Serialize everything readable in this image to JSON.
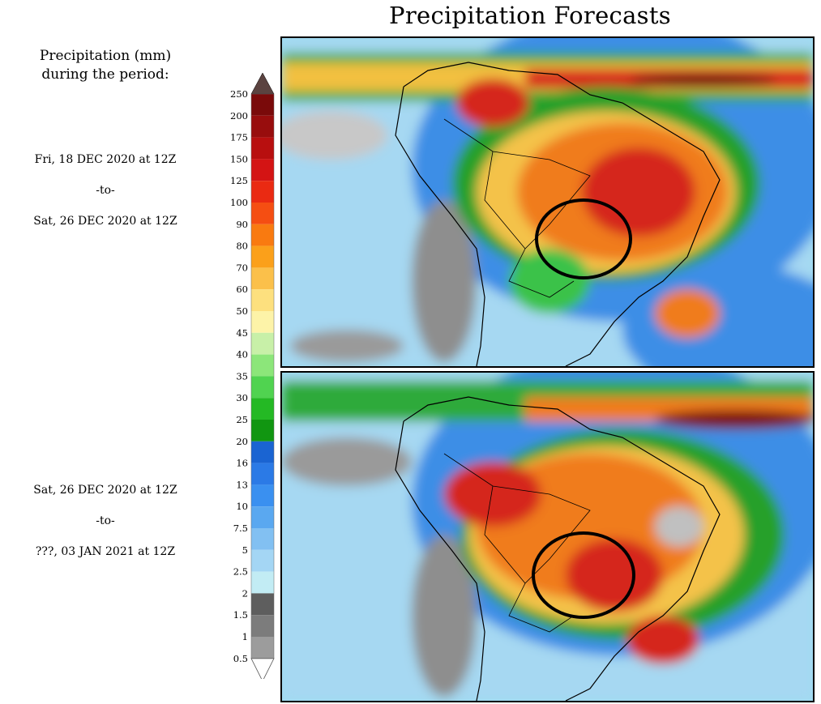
{
  "title": "Precipitation Forecasts",
  "legend": {
    "heading_line1": "Precipitation (mm)",
    "heading_line2": "during the period:",
    "levels": [
      "250",
      "200",
      "175",
      "150",
      "125",
      "100",
      "90",
      "80",
      "70",
      "60",
      "50",
      "45",
      "40",
      "35",
      "30",
      "25",
      "20",
      "16",
      "13",
      "10",
      "7.5",
      "5",
      "2.5",
      "2",
      "1.5",
      "1",
      "0.5"
    ],
    "colors": [
      "#7a0a0a",
      "#980d0d",
      "#b80f0f",
      "#d41414",
      "#ea2a12",
      "#f54e12",
      "#f97a10",
      "#fba01a",
      "#fbc04a",
      "#fde07e",
      "#fdf3a8",
      "#c8f0a8",
      "#8ce67a",
      "#50d350",
      "#24b924",
      "#119611",
      "#1a64d2",
      "#2b7ae6",
      "#3a90f0",
      "#5aa8f0",
      "#82c0f2",
      "#a4d6f4",
      "#c2ecf4",
      "#5e5e5e",
      "#7c7c7c",
      "#9c9c9c",
      "#c0c0c0"
    ],
    "max_arrow_color": "#5b4340",
    "min_arrow_color": "#ffffff"
  },
  "panels": [
    {
      "start": "Fri, 18 DEC 2020 at 12Z",
      "separator": "-to-",
      "end": "Sat, 26 DEC 2020 at 12Z"
    },
    {
      "start": "Sat, 26 DEC 2020 at 12Z",
      "separator": "-to-",
      "end": "???, 03 JAN 2021 at 12Z"
    }
  ]
}
